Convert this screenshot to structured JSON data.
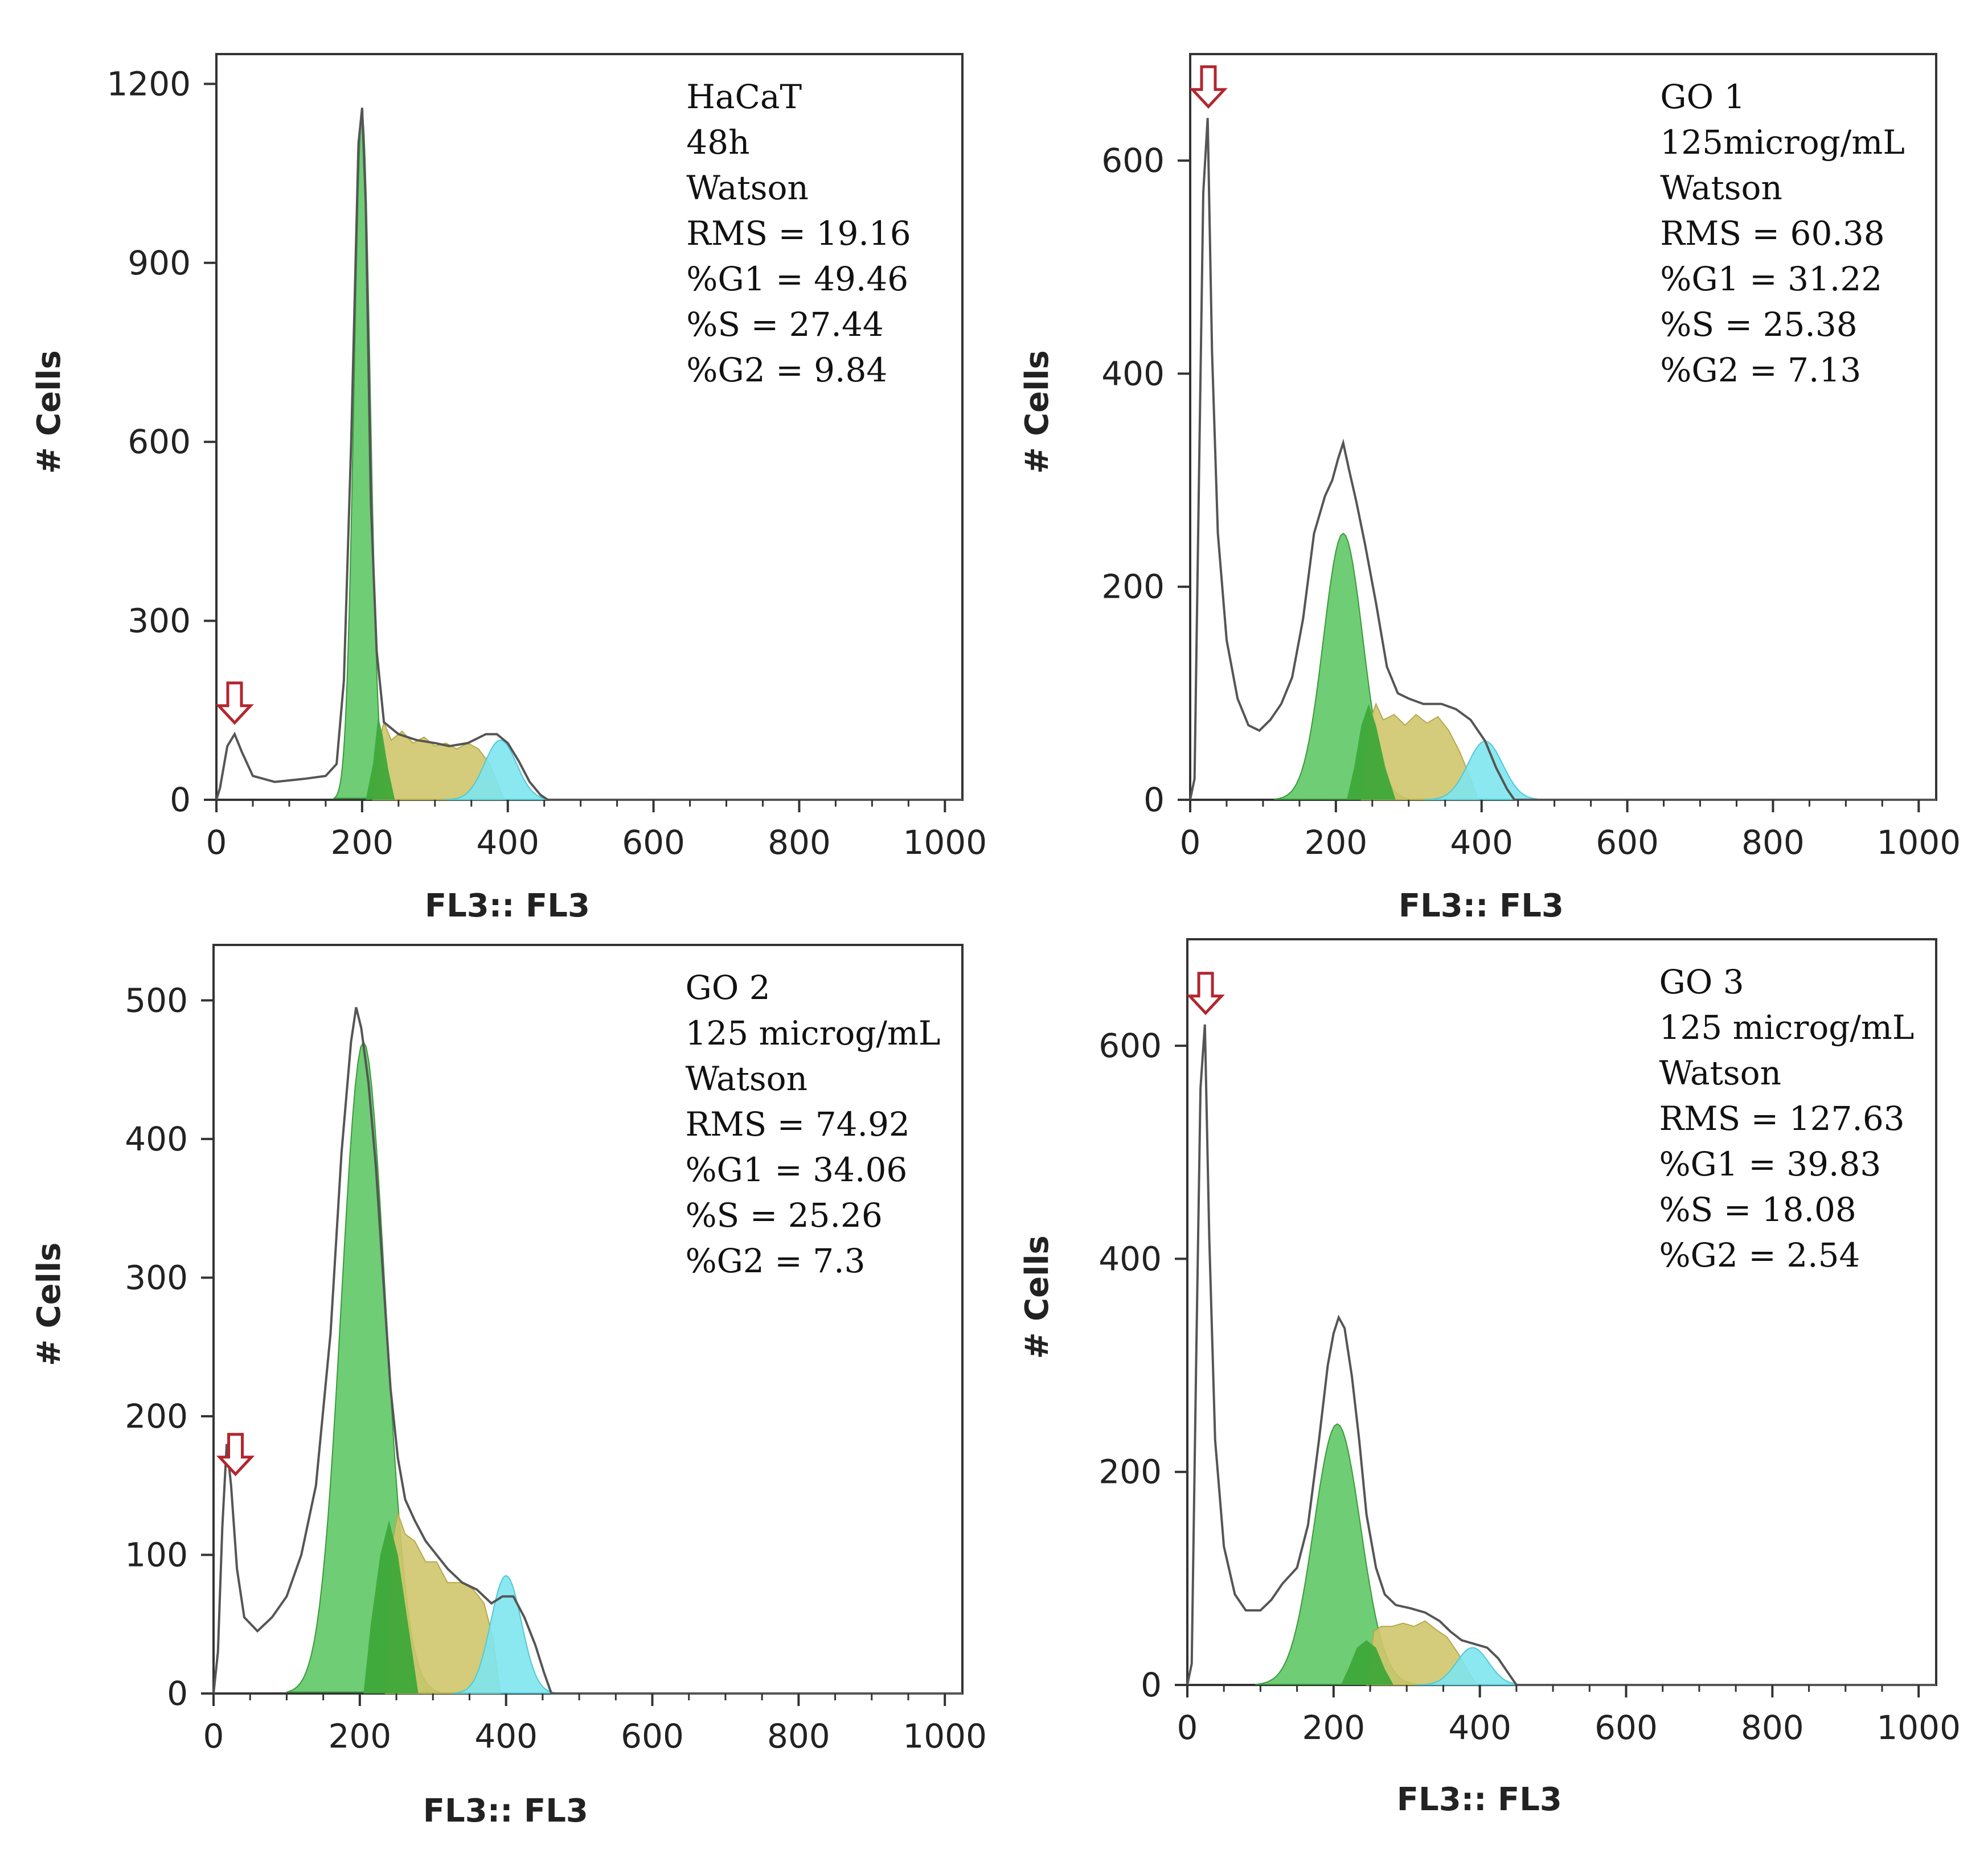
{
  "figure": {
    "description_free": true
  },
  "chart_data": [
    {
      "type": "area",
      "id": "hacat",
      "xlabel": "FL3:: FL3",
      "ylabel": "# Cells",
      "xlim": [
        0,
        1024
      ],
      "ylim": [
        0,
        1250
      ],
      "xticks": [
        0,
        200,
        400,
        600,
        800,
        1000
      ],
      "yticks": [
        0,
        300,
        600,
        900,
        1200
      ],
      "annotation": [
        "HaCaT",
        "48h",
        "Watson",
        "RMS = 19.16",
        "%G1 = 49.46",
        "%S = 27.44",
        "%G2 = 9.84"
      ],
      "arrow_x": 25,
      "total": [
        [
          0,
          0
        ],
        [
          5,
          20
        ],
        [
          15,
          90
        ],
        [
          25,
          110
        ],
        [
          35,
          80
        ],
        [
          50,
          40
        ],
        [
          80,
          30
        ],
        [
          120,
          35
        ],
        [
          150,
          40
        ],
        [
          165,
          60
        ],
        [
          175,
          200
        ],
        [
          185,
          600
        ],
        [
          195,
          1100
        ],
        [
          200,
          1160
        ],
        [
          205,
          1000
        ],
        [
          212,
          500
        ],
        [
          220,
          250
        ],
        [
          230,
          130
        ],
        [
          250,
          110
        ],
        [
          275,
          100
        ],
        [
          300,
          95
        ],
        [
          320,
          90
        ],
        [
          345,
          95
        ],
        [
          370,
          110
        ],
        [
          385,
          110
        ],
        [
          400,
          95
        ],
        [
          415,
          65
        ],
        [
          430,
          30
        ],
        [
          445,
          8
        ],
        [
          455,
          0
        ],
        [
          1024,
          0
        ]
      ],
      "g1": {
        "mean": 200,
        "sd": 11,
        "peak": 1150
      },
      "g1_overlap": [
        [
          205,
          0
        ],
        [
          215,
          60
        ],
        [
          222,
          140
        ],
        [
          228,
          110
        ],
        [
          236,
          50
        ],
        [
          245,
          0
        ]
      ],
      "s": [
        [
          215,
          0
        ],
        [
          222,
          90
        ],
        [
          230,
          130
        ],
        [
          240,
          100
        ],
        [
          255,
          115
        ],
        [
          270,
          95
        ],
        [
          285,
          105
        ],
        [
          300,
          90
        ],
        [
          315,
          95
        ],
        [
          330,
          85
        ],
        [
          345,
          95
        ],
        [
          360,
          85
        ],
        [
          375,
          60
        ],
        [
          385,
          30
        ],
        [
          395,
          0
        ]
      ],
      "g2": {
        "mean": 390,
        "sd": 22,
        "peak": 100
      }
    },
    {
      "type": "area",
      "id": "go1",
      "xlabel": "FL3:: FL3",
      "ylabel": "# Cells",
      "xlim": [
        0,
        1024
      ],
      "ylim": [
        0,
        700
      ],
      "xticks": [
        0,
        200,
        400,
        600,
        800,
        1000
      ],
      "yticks": [
        0,
        200,
        400,
        600
      ],
      "annotation": [
        "GO 1",
        "125microg/mL",
        "Watson",
        "RMS = 60.38",
        "%G1 = 31.22",
        "%S = 25.38",
        "%G2 = 7.13"
      ],
      "arrow_x": 25,
      "total": [
        [
          0,
          0
        ],
        [
          6,
          20
        ],
        [
          12,
          300
        ],
        [
          18,
          570
        ],
        [
          24,
          640
        ],
        [
          30,
          420
        ],
        [
          38,
          250
        ],
        [
          50,
          150
        ],
        [
          65,
          95
        ],
        [
          80,
          70
        ],
        [
          95,
          65
        ],
        [
          110,
          75
        ],
        [
          125,
          90
        ],
        [
          140,
          115
        ],
        [
          155,
          170
        ],
        [
          170,
          250
        ],
        [
          185,
          285
        ],
        [
          195,
          300
        ],
        [
          203,
          320
        ],
        [
          210,
          335
        ],
        [
          218,
          310
        ],
        [
          228,
          280
        ],
        [
          240,
          240
        ],
        [
          255,
          185
        ],
        [
          270,
          125
        ],
        [
          285,
          100
        ],
        [
          300,
          95
        ],
        [
          320,
          90
        ],
        [
          345,
          90
        ],
        [
          365,
          85
        ],
        [
          385,
          75
        ],
        [
          405,
          55
        ],
        [
          420,
          30
        ],
        [
          435,
          10
        ],
        [
          445,
          0
        ],
        [
          1024,
          0
        ]
      ],
      "g1": {
        "mean": 210,
        "sd": 27,
        "peak": 250
      },
      "g1_overlap": [
        [
          215,
          0
        ],
        [
          225,
          30
        ],
        [
          235,
          70
        ],
        [
          245,
          90
        ],
        [
          255,
          70
        ],
        [
          268,
          30
        ],
        [
          282,
          0
        ]
      ],
      "s": [
        [
          235,
          0
        ],
        [
          245,
          70
        ],
        [
          255,
          90
        ],
        [
          265,
          75
        ],
        [
          280,
          80
        ],
        [
          295,
          70
        ],
        [
          310,
          80
        ],
        [
          325,
          72
        ],
        [
          340,
          78
        ],
        [
          355,
          65
        ],
        [
          370,
          45
        ],
        [
          385,
          20
        ],
        [
          395,
          0
        ]
      ],
      "g2": {
        "mean": 405,
        "sd": 24,
        "peak": 55
      }
    },
    {
      "type": "area",
      "id": "go2",
      "xlabel": "FL3:: FL3",
      "ylabel": "# Cells",
      "xlim": [
        0,
        1024
      ],
      "ylim": [
        0,
        540
      ],
      "xticks": [
        0,
        200,
        400,
        600,
        800,
        1000
      ],
      "yticks": [
        0,
        100,
        200,
        300,
        400,
        500
      ],
      "annotation": [
        "GO 2",
        "125 microg/mL",
        "Watson",
        "RMS = 74.92",
        "%G1 = 34.06",
        "%S = 25.26",
        "%G2 = 7.3"
      ],
      "arrow_x": 30,
      "total": [
        [
          0,
          0
        ],
        [
          6,
          30
        ],
        [
          12,
          120
        ],
        [
          18,
          180
        ],
        [
          24,
          150
        ],
        [
          32,
          90
        ],
        [
          42,
          55
        ],
        [
          60,
          45
        ],
        [
          80,
          55
        ],
        [
          100,
          70
        ],
        [
          120,
          100
        ],
        [
          140,
          150
        ],
        [
          160,
          260
        ],
        [
          175,
          390
        ],
        [
          188,
          470
        ],
        [
          195,
          495
        ],
        [
          202,
          480
        ],
        [
          212,
          440
        ],
        [
          222,
          380
        ],
        [
          232,
          300
        ],
        [
          242,
          220
        ],
        [
          252,
          170
        ],
        [
          262,
          140
        ],
        [
          275,
          125
        ],
        [
          290,
          110
        ],
        [
          305,
          100
        ],
        [
          320,
          90
        ],
        [
          340,
          80
        ],
        [
          360,
          75
        ],
        [
          380,
          65
        ],
        [
          395,
          70
        ],
        [
          410,
          70
        ],
        [
          425,
          55
        ],
        [
          440,
          35
        ],
        [
          452,
          15
        ],
        [
          462,
          0
        ],
        [
          1024,
          0
        ]
      ],
      "g1": {
        "mean": 205,
        "sd": 30,
        "peak": 470
      },
      "g1_overlap": [
        [
          205,
          0
        ],
        [
          215,
          50
        ],
        [
          228,
          100
        ],
        [
          240,
          125
        ],
        [
          252,
          100
        ],
        [
          266,
          50
        ],
        [
          280,
          0
        ]
      ],
      "s": [
        [
          235,
          0
        ],
        [
          245,
          110
        ],
        [
          252,
          130
        ],
        [
          262,
          115
        ],
        [
          275,
          110
        ],
        [
          290,
          95
        ],
        [
          305,
          95
        ],
        [
          320,
          80
        ],
        [
          340,
          80
        ],
        [
          355,
          75
        ],
        [
          370,
          65
        ],
        [
          382,
          40
        ],
        [
          392,
          0
        ]
      ],
      "g2": {
        "mean": 400,
        "sd": 21,
        "peak": 85
      }
    },
    {
      "type": "area",
      "id": "go3",
      "xlabel": "FL3:: FL3",
      "ylabel": "# Cells",
      "xlim": [
        0,
        1024
      ],
      "ylim": [
        0,
        700
      ],
      "xticks": [
        0,
        200,
        400,
        600,
        800,
        1000
      ],
      "yticks": [
        0,
        200,
        400,
        600
      ],
      "annotation": [
        "GO 3",
        "125 microg/mL",
        "Watson",
        "RMS = 127.63",
        "%G1 = 39.83",
        "%S = 18.08",
        "%G2 = 2.54"
      ],
      "arrow_x": 25,
      "total": [
        [
          0,
          0
        ],
        [
          6,
          20
        ],
        [
          12,
          300
        ],
        [
          18,
          560
        ],
        [
          24,
          620
        ],
        [
          30,
          420
        ],
        [
          38,
          230
        ],
        [
          50,
          130
        ],
        [
          65,
          85
        ],
        [
          80,
          70
        ],
        [
          100,
          70
        ],
        [
          115,
          80
        ],
        [
          130,
          95
        ],
        [
          150,
          110
        ],
        [
          165,
          150
        ],
        [
          180,
          230
        ],
        [
          192,
          300
        ],
        [
          200,
          330
        ],
        [
          207,
          345
        ],
        [
          215,
          335
        ],
        [
          225,
          290
        ],
        [
          235,
          230
        ],
        [
          245,
          160
        ],
        [
          258,
          110
        ],
        [
          270,
          85
        ],
        [
          285,
          75
        ],
        [
          305,
          72
        ],
        [
          325,
          68
        ],
        [
          345,
          60
        ],
        [
          360,
          50
        ],
        [
          375,
          42
        ],
        [
          395,
          38
        ],
        [
          410,
          35
        ],
        [
          425,
          25
        ],
        [
          440,
          10
        ],
        [
          450,
          0
        ],
        [
          1024,
          0
        ]
      ],
      "g1": {
        "mean": 205,
        "sd": 32,
        "peak": 245
      },
      "g1_overlap": [
        [
          210,
          0
        ],
        [
          220,
          15
        ],
        [
          232,
          35
        ],
        [
          245,
          42
        ],
        [
          258,
          35
        ],
        [
          270,
          15
        ],
        [
          282,
          0
        ]
      ],
      "s": [
        [
          245,
          0
        ],
        [
          255,
          50
        ],
        [
          265,
          55
        ],
        [
          280,
          55
        ],
        [
          295,
          58
        ],
        [
          310,
          55
        ],
        [
          325,
          60
        ],
        [
          340,
          52
        ],
        [
          355,
          45
        ],
        [
          370,
          30
        ],
        [
          385,
          12
        ],
        [
          395,
          0
        ]
      ],
      "g2": {
        "mean": 390,
        "sd": 22,
        "peak": 35
      }
    }
  ]
}
